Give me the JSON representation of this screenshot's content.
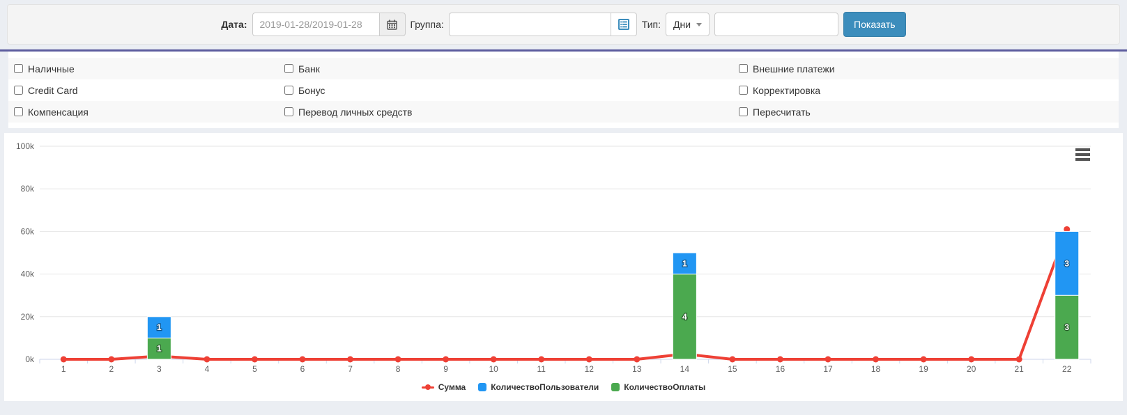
{
  "toolbar": {
    "date_label": "Дата:",
    "date_value": "2019-01-28/2019-01-28",
    "group_label": "Группа:",
    "group_value": "",
    "type_label": "Тип:",
    "type_value": "Дни",
    "extra_value": "",
    "show_button": "Показать"
  },
  "filters": {
    "rows": [
      [
        "Наличные",
        "Банк",
        "Внешние платежи"
      ],
      [
        "Credit Card",
        "Бонус",
        "Корректировка"
      ],
      [
        "Компенсация",
        "Перевод личных средств",
        "Пересчитать"
      ]
    ],
    "all_unchecked": true
  },
  "chart_data": {
    "type": "combo-line-stacked-bar",
    "x": [
      1,
      2,
      3,
      4,
      5,
      6,
      7,
      8,
      9,
      10,
      11,
      12,
      13,
      14,
      15,
      16,
      17,
      18,
      19,
      20,
      21,
      22
    ],
    "ylim": [
      0,
      100000
    ],
    "ytick_values": [
      0,
      20000,
      40000,
      60000,
      80000,
      100000
    ],
    "ytick_labels": [
      "0k",
      "20k",
      "40k",
      "60k",
      "80k",
      "100k"
    ],
    "count_to_value_scale": 10000,
    "grid": true,
    "legend_position": "bottom",
    "series": [
      {
        "name": "Сумма",
        "type": "line",
        "color": "#ee4035",
        "values": [
          0,
          0,
          1500,
          0,
          0,
          0,
          0,
          0,
          0,
          0,
          0,
          0,
          0,
          2500,
          0,
          0,
          0,
          0,
          0,
          0,
          0,
          61000
        ]
      },
      {
        "name": "КоличествоПользователи",
        "type": "bar",
        "color": "#2196f3",
        "values": [
          0,
          0,
          1,
          0,
          0,
          0,
          0,
          0,
          0,
          0,
          0,
          0,
          0,
          1,
          0,
          0,
          0,
          0,
          0,
          0,
          0,
          3
        ]
      },
      {
        "name": "КоличествоОплаты",
        "type": "bar",
        "color": "#4ba94f",
        "values": [
          0,
          0,
          1,
          0,
          0,
          0,
          0,
          0,
          0,
          0,
          0,
          0,
          0,
          4,
          0,
          0,
          0,
          0,
          0,
          0,
          0,
          3
        ]
      }
    ],
    "colors": {
      "grid_line": "#e6e6e6",
      "axis_line": "#ccd6eb",
      "axis_text": "#606060",
      "bar_label_text": "#ffffff"
    }
  }
}
